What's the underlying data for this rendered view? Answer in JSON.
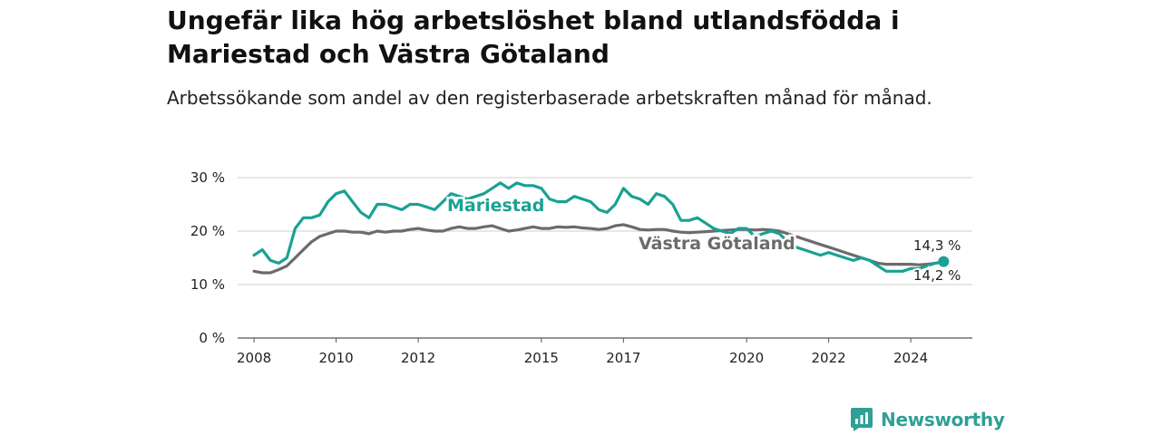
{
  "title": "Ungefär lika hög arbetslöshet bland utlandsfödda i Mariestad och Västra Götaland",
  "subtitle": "Arbetssökande som andel av den registerbaserade arbetskraften månad för månad.",
  "brand": {
    "name": "Newsworthy",
    "color": "#2fa094"
  },
  "chart_data": {
    "type": "line",
    "ylim": [
      0,
      30
    ],
    "xlim": [
      2007.6,
      2025.5
    ],
    "y_ticks": [
      0,
      10,
      20,
      30
    ],
    "y_tick_labels": [
      "0 %",
      "10 %",
      "20 %",
      "30 %"
    ],
    "x_ticks": [
      2008,
      2010,
      2012,
      2015,
      2017,
      2020,
      2022,
      2024
    ],
    "x_tick_labels": [
      "2008",
      "2010",
      "2012",
      "2015",
      "2017",
      "2020",
      "2022",
      "2024"
    ],
    "grid": true,
    "series": [
      {
        "name": "Mariestad",
        "color": "#1aa193",
        "end_label": "14,3 %",
        "x": [
          2008.0,
          2008.2,
          2008.4,
          2008.6,
          2008.8,
          2009.0,
          2009.2,
          2009.4,
          2009.6,
          2009.8,
          2010.0,
          2010.2,
          2010.4,
          2010.6,
          2010.8,
          2011.0,
          2011.2,
          2011.4,
          2011.6,
          2011.8,
          2012.0,
          2012.2,
          2012.4,
          2012.6,
          2012.8,
          2013.0,
          2013.2,
          2013.4,
          2013.6,
          2013.8,
          2014.0,
          2014.2,
          2014.4,
          2014.6,
          2014.8,
          2015.0,
          2015.2,
          2015.4,
          2015.6,
          2015.8,
          2016.0,
          2016.2,
          2016.4,
          2016.6,
          2016.8,
          2017.0,
          2017.2,
          2017.4,
          2017.6,
          2017.8,
          2018.0,
          2018.2,
          2018.4,
          2018.6,
          2018.8,
          2019.0,
          2019.2,
          2019.4,
          2019.6,
          2019.8,
          2020.0,
          2020.2,
          2020.4,
          2020.6,
          2020.8,
          2021.0,
          2021.2,
          2021.4,
          2021.6,
          2021.8,
          2022.0,
          2022.2,
          2022.4,
          2022.6,
          2022.8,
          2023.0,
          2023.2,
          2023.4,
          2023.6,
          2023.8,
          2024.0,
          2024.2,
          2024.4,
          2024.6,
          2024.8
        ],
        "values": [
          15.5,
          16.5,
          14.5,
          14.0,
          15.0,
          20.5,
          22.5,
          22.5,
          23.0,
          25.5,
          27.0,
          27.5,
          25.5,
          23.5,
          22.5,
          25.0,
          25.0,
          24.5,
          24.0,
          25.0,
          25.0,
          24.5,
          24.0,
          25.5,
          27.0,
          26.5,
          26.0,
          26.5,
          27.0,
          28.0,
          29.0,
          28.0,
          29.0,
          28.5,
          28.5,
          28.0,
          26.0,
          25.5,
          25.5,
          26.5,
          26.0,
          25.5,
          24.0,
          23.5,
          25.0,
          28.0,
          26.5,
          26.0,
          25.0,
          27.0,
          26.5,
          25.0,
          22.0,
          22.0,
          22.5,
          21.5,
          20.5,
          20.0,
          19.5,
          20.5,
          20.5,
          19.0,
          19.5,
          20.0,
          19.5,
          18.0,
          17.0,
          16.5,
          16.0,
          15.5,
          16.0,
          15.5,
          15.0,
          14.5,
          15.0,
          14.5,
          13.5,
          12.5,
          12.5,
          12.5,
          13.0,
          13.0,
          13.5,
          14.0,
          14.3
        ]
      },
      {
        "name": "Västra Götaland",
        "color": "#6b6b6b",
        "end_label": "14,2 %",
        "x": [
          2008.0,
          2008.2,
          2008.4,
          2008.6,
          2008.8,
          2009.0,
          2009.2,
          2009.4,
          2009.6,
          2009.8,
          2010.0,
          2010.2,
          2010.4,
          2010.6,
          2010.8,
          2011.0,
          2011.2,
          2011.4,
          2011.6,
          2011.8,
          2012.0,
          2012.2,
          2012.4,
          2012.6,
          2012.8,
          2013.0,
          2013.2,
          2013.4,
          2013.6,
          2013.8,
          2014.0,
          2014.2,
          2014.4,
          2014.6,
          2014.8,
          2015.0,
          2015.2,
          2015.4,
          2015.6,
          2015.8,
          2016.0,
          2016.2,
          2016.4,
          2016.6,
          2016.8,
          2017.0,
          2017.2,
          2017.4,
          2017.6,
          2017.8,
          2018.0,
          2018.2,
          2018.4,
          2018.6,
          2018.8,
          2019.0,
          2019.2,
          2019.4,
          2019.6,
          2019.8,
          2020.0,
          2020.2,
          2020.4,
          2020.6,
          2020.8,
          2021.0,
          2021.2,
          2021.4,
          2021.6,
          2021.8,
          2022.0,
          2022.2,
          2022.4,
          2022.6,
          2022.8,
          2023.0,
          2023.2,
          2023.4,
          2023.6,
          2023.8,
          2024.0,
          2024.2,
          2024.4,
          2024.6,
          2024.8
        ],
        "values": [
          12.5,
          12.2,
          12.2,
          12.8,
          13.5,
          15.0,
          16.5,
          18.0,
          19.0,
          19.5,
          20.0,
          20.0,
          19.8,
          19.8,
          19.5,
          20.0,
          19.8,
          20.0,
          20.0,
          20.3,
          20.5,
          20.2,
          20.0,
          20.0,
          20.5,
          20.8,
          20.5,
          20.5,
          20.8,
          21.0,
          20.5,
          20.0,
          20.2,
          20.5,
          20.8,
          20.5,
          20.5,
          20.8,
          20.7,
          20.8,
          20.6,
          20.5,
          20.3,
          20.5,
          21.0,
          21.2,
          20.8,
          20.3,
          20.2,
          20.3,
          20.3,
          20.0,
          19.8,
          19.7,
          19.8,
          19.9,
          20.0,
          20.1,
          20.2,
          20.3,
          20.3,
          20.2,
          20.3,
          20.2,
          20.0,
          19.5,
          19.0,
          18.5,
          18.0,
          17.5,
          17.0,
          16.5,
          16.0,
          15.5,
          15.0,
          14.5,
          14.0,
          13.8,
          13.8,
          13.8,
          13.8,
          13.7,
          13.8,
          14.0,
          14.2
        ]
      }
    ]
  }
}
